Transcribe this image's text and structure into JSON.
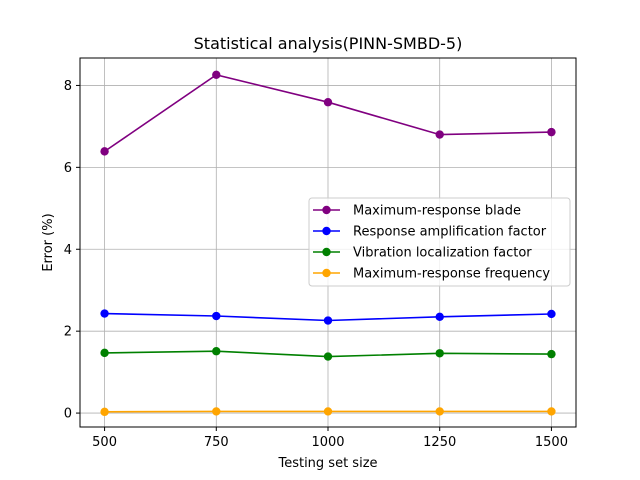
{
  "chart_data": {
    "type": "line",
    "title": "Statistical analysis(PINN-SMBD-5)",
    "xlabel": "Testing set size",
    "ylabel": "Error (%)",
    "x": [
      500,
      750,
      1000,
      1250,
      1500
    ],
    "xticks": [
      "500",
      "750",
      "1000",
      "1250",
      "1500"
    ],
    "yticks": [
      "0",
      "2",
      "4",
      "6",
      "8"
    ],
    "xlim": [
      445,
      1555
    ],
    "ylim": [
      -0.34,
      8.67
    ],
    "grid": true,
    "legend_position": "center-right",
    "series": [
      {
        "name": "Maximum-response blade",
        "color": "#800080",
        "marker": "circle",
        "values": [
          6.39,
          8.26,
          7.59,
          6.8,
          6.86
        ]
      },
      {
        "name": "Response amplification factor",
        "color": "#0000ff",
        "marker": "circle",
        "values": [
          2.43,
          2.37,
          2.26,
          2.35,
          2.42
        ]
      },
      {
        "name": "Vibration localization factor",
        "color": "#008000",
        "marker": "circle",
        "values": [
          1.47,
          1.51,
          1.38,
          1.46,
          1.44
        ]
      },
      {
        "name": "Maximum-response frequency",
        "color": "#ffa500",
        "marker": "circle",
        "values": [
          0.03,
          0.04,
          0.04,
          0.04,
          0.04
        ]
      }
    ]
  }
}
